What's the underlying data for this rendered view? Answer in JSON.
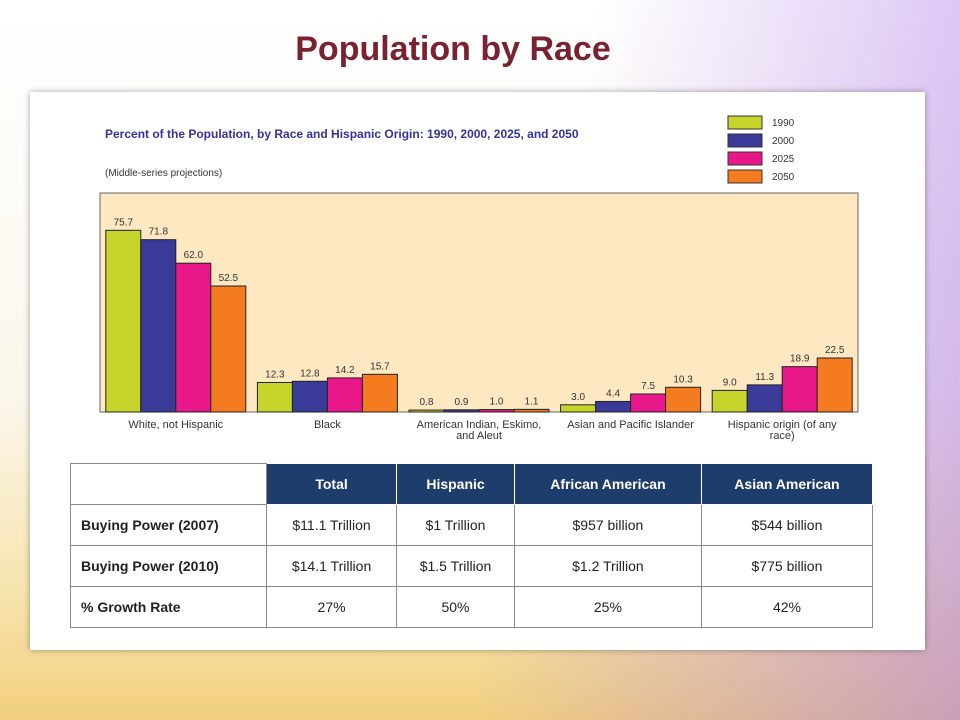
{
  "title": "Population by Race",
  "chart_data": {
    "type": "bar",
    "subtitle": "Percent of the Population, by Race and Hispanic Origin: 1990, 2000, 2025, and 2050",
    "note": "(Middle-series projections)",
    "categories": [
      "White, not Hispanic",
      "Black",
      "American Indian, Eskimo, and Aleut",
      "Asian and Pacific Islander",
      "Hispanic origin (of any race)"
    ],
    "series": [
      {
        "name": "1990",
        "color": "#c6d52b",
        "values": [
          75.7,
          12.3,
          0.8,
          3.0,
          9.0
        ],
        "value_labels": [
          "75.7",
          "12.3",
          "0.8",
          "3.0",
          "9.0"
        ]
      },
      {
        "name": "2000",
        "color": "#3a3a98",
        "values": [
          71.8,
          12.8,
          0.9,
          4.4,
          11.3
        ],
        "value_labels": [
          "71.8",
          "12.8",
          "0.9",
          "4.4",
          "11.3"
        ]
      },
      {
        "name": "2025",
        "color": "#e8178a",
        "values": [
          62.0,
          14.2,
          1.0,
          7.5,
          18.9
        ],
        "value_labels": [
          "62.0",
          "14.2",
          "1.0",
          "7.5",
          "18.9"
        ]
      },
      {
        "name": "2050",
        "color": "#f47b20",
        "values": [
          52.5,
          15.7,
          1.1,
          10.3,
          22.5
        ],
        "value_labels": [
          "52.5",
          "15.7",
          "1.1",
          "10.3",
          "22.5"
        ]
      }
    ]
  },
  "table": {
    "columns": [
      "Total",
      "Hispanic",
      "African American",
      "Asian American"
    ],
    "rows": [
      {
        "label": "Buying Power (2007)",
        "cells": [
          "$11.1 Trillion",
          "$1 Trillion",
          "$957 billion",
          "$544 billion"
        ]
      },
      {
        "label": "Buying Power (2010)",
        "cells": [
          "$14.1 Trillion",
          "$1.5 Trillion",
          "$1.2 Trillion",
          "$775 billion"
        ]
      },
      {
        "label": "% Growth Rate",
        "cells": [
          "27%",
          "50%",
          "25%",
          "42%"
        ]
      }
    ]
  }
}
